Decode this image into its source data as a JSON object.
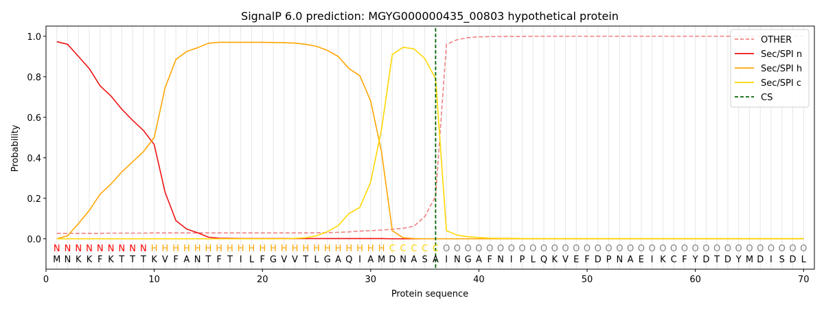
{
  "chart_data": {
    "type": "line",
    "title": "SignalP 6.0 prediction: MGYG000000435_00803 hypothetical protein",
    "xlabel": "Protein sequence",
    "ylabel": "Probability",
    "xlim": [
      0,
      71
    ],
    "ylim": [
      -0.15,
      1.05
    ],
    "x_ticks": [
      0,
      10,
      20,
      30,
      40,
      50,
      60,
      70
    ],
    "y_ticks": [
      0.0,
      0.2,
      0.4,
      0.6,
      0.8,
      1.0
    ],
    "x_tick_labels": [
      "0",
      "10",
      "20",
      "30",
      "40",
      "50",
      "60",
      "70"
    ],
    "y_tick_labels": [
      "0.0",
      "0.2",
      "0.4",
      "0.6",
      "0.8",
      "1.0"
    ],
    "grid": "vertical lines at each residue",
    "legend_position": "top-right",
    "cleavage_site": 36,
    "sequence": "MNKKFKTTTKVFANTFTILFGVVTLGAQIAMDNASAINGAFNIPLQKVEFDPNAEIKCFYDTDYMDISDL",
    "labels": "NNNNNNNNNHHHHHHHHHHHHHHHHHHHHHHCCCCCOOOOOOOOOOOOOOOOOOOOOOOOOOOOOOOOOO",
    "label_colors": {
      "N": "#ff0000",
      "H": "#ffa500",
      "C": "#ffd700",
      "O": "#808080"
    },
    "series": [
      {
        "name": "OTHER",
        "color": "#f08080",
        "dash": true,
        "values": [
          0.027,
          0.027,
          0.027,
          0.027,
          0.027,
          0.028,
          0.028,
          0.028,
          0.028,
          0.029,
          0.029,
          0.029,
          0.029,
          0.029,
          0.029,
          0.029,
          0.029,
          0.029,
          0.029,
          0.029,
          0.029,
          0.029,
          0.029,
          0.029,
          0.03,
          0.03,
          0.032,
          0.034,
          0.038,
          0.04,
          0.043,
          0.047,
          0.052,
          0.062,
          0.11,
          0.21,
          0.96,
          0.983,
          0.993,
          0.997,
          0.998,
          0.999,
          0.999,
          0.999,
          1.0,
          1.0,
          1.0,
          1.0,
          1.0,
          1.0,
          1.0,
          1.0,
          1.0,
          1.0,
          1.0,
          1.0,
          1.0,
          1.0,
          1.0,
          1.0,
          1.0,
          1.0,
          1.0,
          1.0,
          1.0,
          1.0,
          1.0,
          1.0,
          1.0,
          1.0
        ]
      },
      {
        "name": "Sec/SPI n",
        "color": "#ee1111",
        "dash": false,
        "values": [
          0.973,
          0.96,
          0.9,
          0.84,
          0.755,
          0.705,
          0.64,
          0.585,
          0.535,
          0.465,
          0.23,
          0.09,
          0.048,
          0.03,
          0.008,
          0.003,
          0.002,
          0.001,
          0.001,
          0.001,
          0.001,
          0.001,
          0.001,
          0.001,
          0.001,
          0.001,
          0.001,
          0.001,
          0.001,
          0.001,
          0.001,
          0.0,
          0.0,
          0.0,
          0.0,
          0.0,
          0.0,
          0.0,
          0.0,
          0.0,
          0.0,
          0.0,
          0.0,
          0.0,
          0.0,
          0.0,
          0.0,
          0.0,
          0.0,
          0.0,
          0.0,
          0.0,
          0.0,
          0.0,
          0.0,
          0.0,
          0.0,
          0.0,
          0.0,
          0.0,
          0.0,
          0.0,
          0.0,
          0.0,
          0.0,
          0.0,
          0.0,
          0.0,
          0.0,
          0.0
        ]
      },
      {
        "name": "Sec/SPI h",
        "color": "#ffa500",
        "dash": false,
        "values": [
          0.0,
          0.015,
          0.075,
          0.14,
          0.22,
          0.27,
          0.33,
          0.38,
          0.43,
          0.5,
          0.745,
          0.885,
          0.925,
          0.943,
          0.965,
          0.97,
          0.97,
          0.97,
          0.97,
          0.97,
          0.969,
          0.968,
          0.966,
          0.96,
          0.95,
          0.93,
          0.9,
          0.84,
          0.805,
          0.68,
          0.43,
          0.04,
          0.005,
          0.001,
          0.0,
          0.0,
          0.0,
          0.0,
          0.0,
          0.0,
          0.0,
          0.0,
          0.0,
          0.0,
          0.0,
          0.0,
          0.0,
          0.0,
          0.0,
          0.0,
          0.0,
          0.0,
          0.0,
          0.0,
          0.0,
          0.0,
          0.0,
          0.0,
          0.0,
          0.0,
          0.0,
          0.0,
          0.0,
          0.0,
          0.0,
          0.0,
          0.0,
          0.0,
          0.0,
          0.0
        ]
      },
      {
        "name": "Sec/SPI c",
        "color": "#ffd700",
        "dash": false,
        "values": [
          0.0,
          0.0,
          0.0,
          0.0,
          0.0,
          0.0,
          0.0,
          0.0,
          0.0,
          0.0,
          0.0,
          0.0,
          0.0,
          0.0,
          0.0,
          0.0,
          0.0,
          0.0,
          0.0,
          0.0,
          0.0,
          0.0,
          0.002,
          0.005,
          0.015,
          0.035,
          0.065,
          0.125,
          0.155,
          0.28,
          0.54,
          0.91,
          0.945,
          0.938,
          0.89,
          0.79,
          0.04,
          0.018,
          0.01,
          0.006,
          0.003,
          0.002,
          0.002,
          0.001,
          0.001,
          0.001,
          0.001,
          0.001,
          0.001,
          0.001,
          0.001,
          0.001,
          0.001,
          0.001,
          0.001,
          0.001,
          0.001,
          0.001,
          0.001,
          0.001,
          0.001,
          0.001,
          0.001,
          0.001,
          0.001,
          0.001,
          0.001,
          0.001,
          0.001,
          0.001
        ]
      }
    ],
    "legend": [
      {
        "name": "OTHER",
        "color": "#f08080",
        "dash": true
      },
      {
        "name": "Sec/SPI n",
        "color": "#ee1111",
        "dash": false
      },
      {
        "name": "Sec/SPI h",
        "color": "#ffa500",
        "dash": false
      },
      {
        "name": "Sec/SPI c",
        "color": "#ffd700",
        "dash": false
      },
      {
        "name": "CS",
        "color": "#006400",
        "dash": true
      }
    ]
  }
}
